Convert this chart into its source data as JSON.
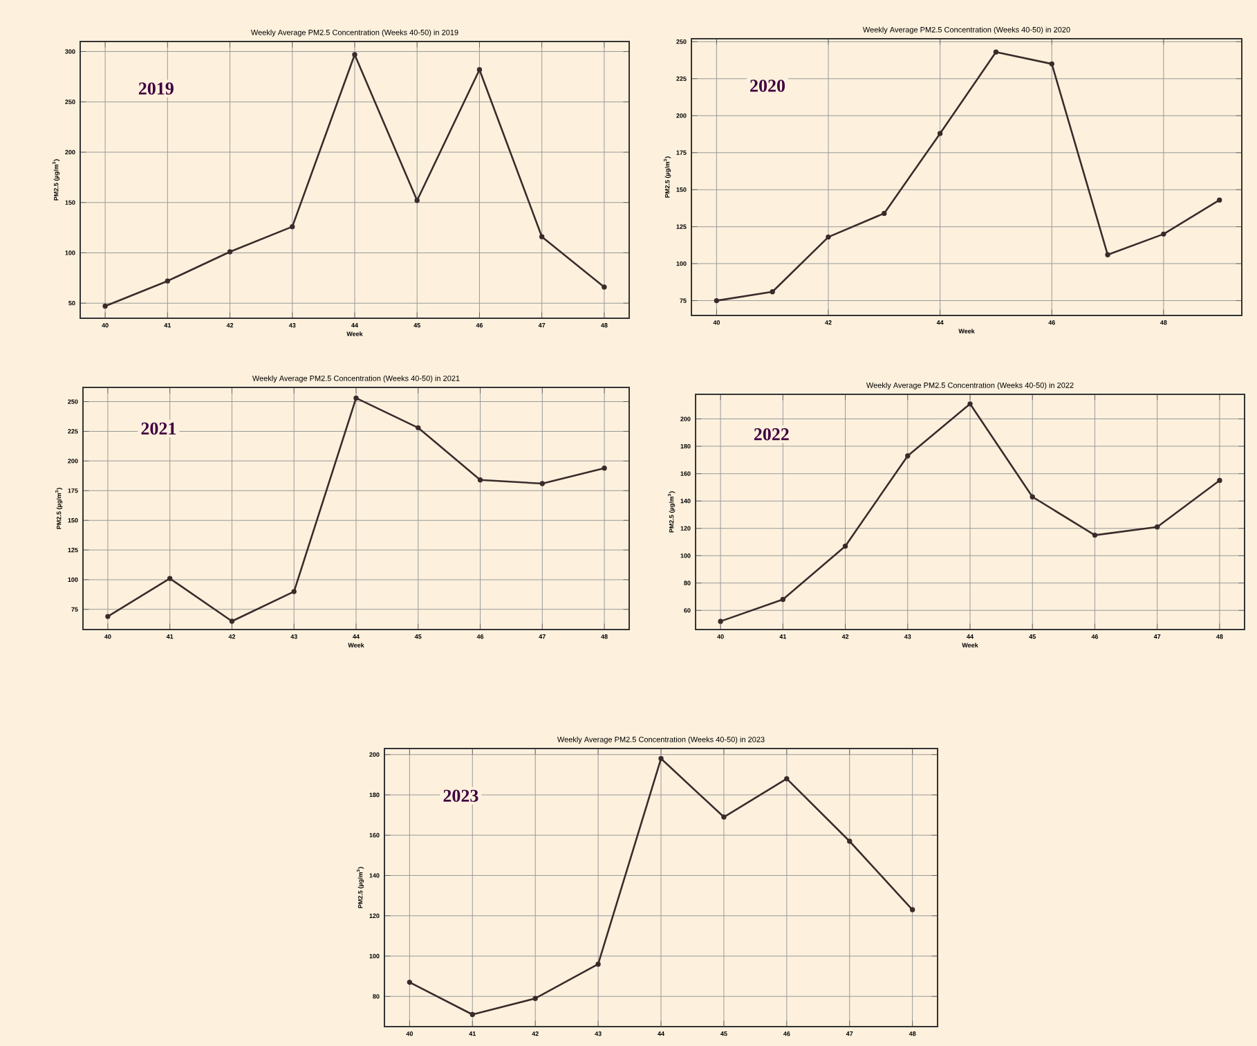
{
  "chart_data": [
    {
      "type": "line",
      "title": "Weekly Average PM2.5 Concentration (Weeks 40-50) in 2019",
      "xlabel": "Week",
      "ylabel": "PM2.5 (µg/m$^{3}$)",
      "annotations": [
        "2019"
      ],
      "color": "#3a2b2b",
      "marker": "circle",
      "grid": true,
      "x": [
        40,
        41,
        42,
        43,
        44,
        45,
        46,
        47,
        48
      ],
      "values": [
        47,
        72,
        101,
        126,
        297,
        152,
        282,
        116,
        66
      ],
      "xlim": [
        39.6,
        48.4
      ],
      "ylim": [
        35,
        310
      ],
      "xticks": [
        40,
        41,
        42,
        43,
        44,
        45,
        46,
        47,
        48
      ],
      "yticks": [
        50,
        100,
        150,
        200,
        250,
        300
      ]
    },
    {
      "type": "line",
      "title": "Weekly Average PM2.5 Concentration (Weeks 40-50) in 2020",
      "xlabel": "Week",
      "ylabel": "PM2.5 (µg/m$^{3}$)",
      "annotations": [
        "2020"
      ],
      "color": "#3a2b2b",
      "marker": "circle",
      "grid": true,
      "x": [
        40,
        41,
        42,
        43,
        44,
        45,
        46,
        47,
        48,
        49
      ],
      "values": [
        75,
        81,
        118,
        134,
        188,
        243,
        235,
        106,
        120,
        143
      ],
      "xlim": [
        39.55,
        49.4
      ],
      "ylim": [
        65,
        252
      ],
      "xticks": [
        40,
        42,
        44,
        46,
        48
      ],
      "yticks": [
        75,
        100,
        125,
        150,
        175,
        200,
        225,
        250
      ]
    },
    {
      "type": "line",
      "title": "Weekly Average PM2.5 Concentration (Weeks 40-50) in 2021",
      "xlabel": "Week",
      "ylabel": "PM2.5 (µg/m$^{3}$)",
      "annotations": [
        "2021"
      ],
      "color": "#3a2b2b",
      "marker": "circle",
      "grid": true,
      "x": [
        40,
        41,
        42,
        43,
        44,
        45,
        46,
        47,
        48
      ],
      "values": [
        69,
        101,
        65,
        90,
        253,
        228,
        184,
        181,
        194
      ],
      "xlim": [
        39.6,
        48.4
      ],
      "ylim": [
        58,
        262
      ],
      "xticks": [
        40,
        41,
        42,
        43,
        44,
        45,
        46,
        47,
        48
      ],
      "yticks": [
        75,
        100,
        125,
        150,
        175,
        200,
        225,
        250
      ]
    },
    {
      "type": "line",
      "title": "Weekly Average PM2.5 Concentration (Weeks 40-50) in 2022",
      "xlabel": "Week",
      "ylabel": "PM2.5 (µg/m$^{3}$)",
      "annotations": [
        "2022"
      ],
      "color": "#3a2b2b",
      "marker": "circle",
      "grid": true,
      "x": [
        40,
        41,
        42,
        43,
        44,
        45,
        46,
        47,
        48
      ],
      "values": [
        52,
        68,
        107,
        173,
        211,
        143,
        115,
        121,
        155
      ],
      "xlim": [
        39.6,
        48.4
      ],
      "ylim": [
        46,
        218
      ],
      "xticks": [
        40,
        41,
        42,
        43,
        44,
        45,
        46,
        47,
        48
      ],
      "yticks": [
        60,
        80,
        100,
        120,
        140,
        160,
        180,
        200
      ]
    },
    {
      "type": "line",
      "title": "Weekly Average PM2.5 Concentration (Weeks 40-50) in 2023",
      "ylabel": "PM2.5 (µg/m$^{3}$)",
      "annotations": [
        "2023"
      ],
      "color": "#3a2b2b",
      "marker": "circle",
      "grid": true,
      "x": [
        40,
        41,
        42,
        43,
        44,
        45,
        46,
        47,
        48
      ],
      "values": [
        87,
        71,
        79,
        96,
        198,
        169,
        188,
        157,
        123
      ],
      "xlim": [
        39.6,
        48.4
      ],
      "ylim": [
        65,
        203
      ],
      "xticks": [
        40,
        41,
        42,
        43,
        44,
        45,
        46,
        47,
        48
      ],
      "yticks": [
        80,
        100,
        120,
        140,
        160,
        180,
        200
      ]
    }
  ]
}
